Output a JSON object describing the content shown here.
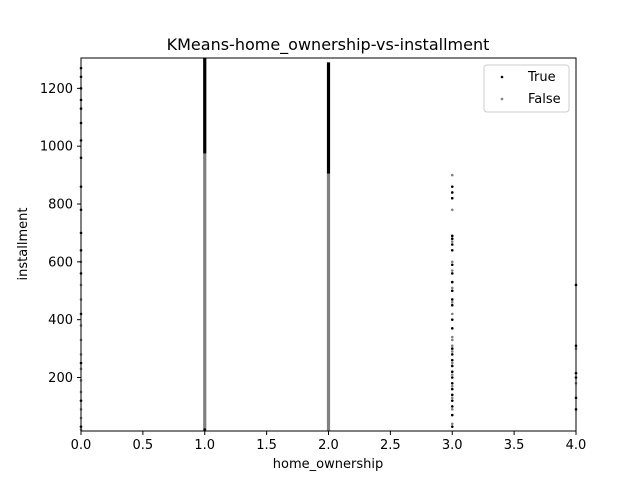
{
  "chart_data": {
    "type": "scatter",
    "title": "KMeans-home_ownership-vs-installment",
    "xlabel": "home_ownership",
    "ylabel": "installment",
    "xlim": [
      0.0,
      4.0
    ],
    "ylim": [
      15,
      1305
    ],
    "xticks": [
      "0.0",
      "0.5",
      "1.0",
      "1.5",
      "2.0",
      "2.5",
      "3.0",
      "3.5",
      "4.0"
    ],
    "yticks": [
      "200",
      "400",
      "600",
      "800",
      "1000",
      "1200"
    ],
    "legend_position": "top-right",
    "grid": false,
    "series": [
      {
        "name": "True",
        "color": "#000000",
        "points": [
          {
            "x": 0,
            "y": 30
          },
          {
            "x": 0,
            "y": 120
          },
          {
            "x": 0,
            "y": 250
          },
          {
            "x": 0,
            "y": 420
          },
          {
            "x": 0,
            "y": 560
          },
          {
            "x": 0,
            "y": 640
          },
          {
            "x": 0,
            "y": 700
          },
          {
            "x": 0,
            "y": 780
          },
          {
            "x": 0,
            "y": 860
          },
          {
            "x": 0,
            "y": 960
          },
          {
            "x": 0,
            "y": 1020
          },
          {
            "x": 0,
            "y": 1080
          },
          {
            "x": 0,
            "y": 1130
          },
          {
            "x": 0,
            "y": 1160
          },
          {
            "x": 0,
            "y": 1200
          },
          {
            "x": 0,
            "y": 1240
          },
          {
            "x": 0,
            "y": 1270
          },
          {
            "x": 1,
            "y": 20
          },
          {
            "x": 1,
            "y": 980
          },
          {
            "x": 1,
            "y": 995
          },
          {
            "x": 1,
            "y": 1010
          },
          {
            "x": 1,
            "y": 1030
          },
          {
            "x": 1,
            "y": 1050
          },
          {
            "x": 1,
            "y": 1070
          },
          {
            "x": 1,
            "y": 1090
          },
          {
            "x": 1,
            "y": 1110
          },
          {
            "x": 1,
            "y": 1130
          },
          {
            "x": 1,
            "y": 1150
          },
          {
            "x": 1,
            "y": 1170
          },
          {
            "x": 1,
            "y": 1190
          },
          {
            "x": 1,
            "y": 1210
          },
          {
            "x": 1,
            "y": 1230
          },
          {
            "x": 1,
            "y": 1250
          },
          {
            "x": 1,
            "y": 1270
          },
          {
            "x": 1,
            "y": 1290
          },
          {
            "x": 1,
            "y": 1300
          },
          {
            "x": 2,
            "y": 910
          },
          {
            "x": 2,
            "y": 930
          },
          {
            "x": 2,
            "y": 960
          },
          {
            "x": 2,
            "y": 980
          },
          {
            "x": 2,
            "y": 1000
          },
          {
            "x": 2,
            "y": 1020
          },
          {
            "x": 2,
            "y": 1040
          },
          {
            "x": 2,
            "y": 1060
          },
          {
            "x": 2,
            "y": 1080
          },
          {
            "x": 2,
            "y": 1100
          },
          {
            "x": 2,
            "y": 1120
          },
          {
            "x": 2,
            "y": 1150
          },
          {
            "x": 2,
            "y": 1180
          },
          {
            "x": 2,
            "y": 1210
          },
          {
            "x": 2,
            "y": 1260
          },
          {
            "x": 2,
            "y": 1280
          },
          {
            "x": 3,
            "y": 30
          },
          {
            "x": 3,
            "y": 70
          },
          {
            "x": 3,
            "y": 100
          },
          {
            "x": 3,
            "y": 120
          },
          {
            "x": 3,
            "y": 140
          },
          {
            "x": 3,
            "y": 160
          },
          {
            "x": 3,
            "y": 180
          },
          {
            "x": 3,
            "y": 200
          },
          {
            "x": 3,
            "y": 220
          },
          {
            "x": 3,
            "y": 240
          },
          {
            "x": 3,
            "y": 260
          },
          {
            "x": 3,
            "y": 280
          },
          {
            "x": 3,
            "y": 300
          },
          {
            "x": 3,
            "y": 370
          },
          {
            "x": 3,
            "y": 400
          },
          {
            "x": 3,
            "y": 450
          },
          {
            "x": 3,
            "y": 470
          },
          {
            "x": 3,
            "y": 500
          },
          {
            "x": 3,
            "y": 530
          },
          {
            "x": 3,
            "y": 560
          },
          {
            "x": 3,
            "y": 590
          },
          {
            "x": 3,
            "y": 640
          },
          {
            "x": 3,
            "y": 660
          },
          {
            "x": 3,
            "y": 680
          },
          {
            "x": 3,
            "y": 690
          },
          {
            "x": 3,
            "y": 820
          },
          {
            "x": 3,
            "y": 840
          },
          {
            "x": 3,
            "y": 860
          },
          {
            "x": 4,
            "y": 90
          },
          {
            "x": 4,
            "y": 130
          },
          {
            "x": 4,
            "y": 200
          },
          {
            "x": 4,
            "y": 215
          },
          {
            "x": 4,
            "y": 310
          },
          {
            "x": 4,
            "y": 520
          }
        ]
      },
      {
        "name": "False",
        "color": "#808080",
        "points": [
          {
            "x": 0,
            "y": 20
          },
          {
            "x": 0,
            "y": 60
          },
          {
            "x": 0,
            "y": 90
          },
          {
            "x": 0,
            "y": 150
          },
          {
            "x": 0,
            "y": 190
          },
          {
            "x": 0,
            "y": 230
          },
          {
            "x": 0,
            "y": 280
          },
          {
            "x": 0,
            "y": 330
          },
          {
            "x": 0,
            "y": 380
          },
          {
            "x": 0,
            "y": 470
          },
          {
            "x": 0,
            "y": 520
          },
          {
            "x": 0,
            "y": 600
          },
          {
            "x": 1,
            "y": 40
          },
          {
            "x": 1,
            "y": 80
          },
          {
            "x": 1,
            "y": 120
          },
          {
            "x": 1,
            "y": 160
          },
          {
            "x": 1,
            "y": 200
          },
          {
            "x": 1,
            "y": 240
          },
          {
            "x": 1,
            "y": 280
          },
          {
            "x": 1,
            "y": 320
          },
          {
            "x": 1,
            "y": 360
          },
          {
            "x": 1,
            "y": 400
          },
          {
            "x": 1,
            "y": 440
          },
          {
            "x": 1,
            "y": 480
          },
          {
            "x": 1,
            "y": 520
          },
          {
            "x": 1,
            "y": 560
          },
          {
            "x": 1,
            "y": 600
          },
          {
            "x": 1,
            "y": 640
          },
          {
            "x": 1,
            "y": 680
          },
          {
            "x": 1,
            "y": 720
          },
          {
            "x": 1,
            "y": 760
          },
          {
            "x": 1,
            "y": 800
          },
          {
            "x": 1,
            "y": 840
          },
          {
            "x": 1,
            "y": 880
          },
          {
            "x": 1,
            "y": 920
          },
          {
            "x": 1,
            "y": 960
          },
          {
            "x": 2,
            "y": 40
          },
          {
            "x": 2,
            "y": 80
          },
          {
            "x": 2,
            "y": 120
          },
          {
            "x": 2,
            "y": 160
          },
          {
            "x": 2,
            "y": 200
          },
          {
            "x": 2,
            "y": 240
          },
          {
            "x": 2,
            "y": 280
          },
          {
            "x": 2,
            "y": 320
          },
          {
            "x": 2,
            "y": 360
          },
          {
            "x": 2,
            "y": 400
          },
          {
            "x": 2,
            "y": 440
          },
          {
            "x": 2,
            "y": 480
          },
          {
            "x": 2,
            "y": 520
          },
          {
            "x": 2,
            "y": 560
          },
          {
            "x": 2,
            "y": 600
          },
          {
            "x": 2,
            "y": 640
          },
          {
            "x": 2,
            "y": 680
          },
          {
            "x": 2,
            "y": 720
          },
          {
            "x": 2,
            "y": 760
          },
          {
            "x": 2,
            "y": 780
          },
          {
            "x": 2,
            "y": 820
          },
          {
            "x": 2,
            "y": 860
          },
          {
            "x": 2,
            "y": 890
          },
          {
            "x": 3,
            "y": 40
          },
          {
            "x": 3,
            "y": 90
          },
          {
            "x": 3,
            "y": 130
          },
          {
            "x": 3,
            "y": 170
          },
          {
            "x": 3,
            "y": 210
          },
          {
            "x": 3,
            "y": 250
          },
          {
            "x": 3,
            "y": 290
          },
          {
            "x": 3,
            "y": 310
          },
          {
            "x": 3,
            "y": 330
          },
          {
            "x": 3,
            "y": 340
          },
          {
            "x": 3,
            "y": 420
          },
          {
            "x": 3,
            "y": 460
          },
          {
            "x": 3,
            "y": 510
          },
          {
            "x": 3,
            "y": 570
          },
          {
            "x": 3,
            "y": 600
          },
          {
            "x": 3,
            "y": 670
          },
          {
            "x": 3,
            "y": 780
          },
          {
            "x": 3,
            "y": 900
          },
          {
            "x": 4,
            "y": 180
          },
          {
            "x": 4,
            "y": 300
          }
        ]
      }
    ]
  }
}
